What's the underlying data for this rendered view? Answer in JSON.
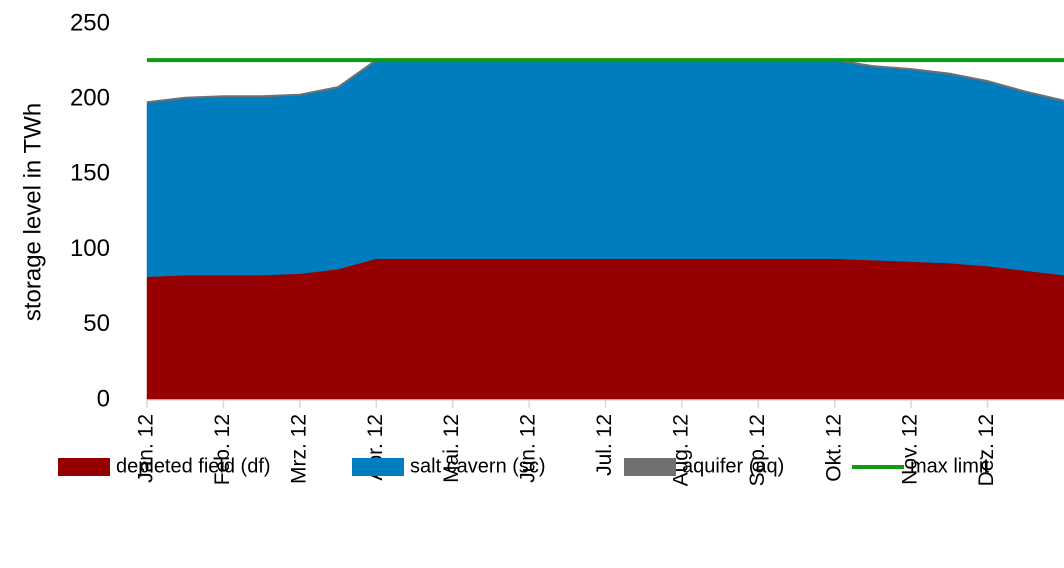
{
  "chart_data": {
    "type": "area",
    "stacked": true,
    "y_label": "storage level in TWh",
    "categories": [
      "Jan. 12",
      null,
      "Feb. 12",
      null,
      "Mrz. 12",
      null,
      "Apr. 12",
      null,
      "Mai. 12",
      null,
      "Jun. 12",
      null,
      "Jul. 12",
      null,
      "Aug. 12",
      null,
      "Sep. 12",
      null,
      "Okt. 12",
      null,
      "Nov. 12",
      null,
      "Dez. 12",
      null,
      null
    ],
    "series": [
      {
        "name": "depleted field (df)",
        "color": "#960000",
        "values": [
          82,
          83,
          83,
          83,
          84,
          87,
          94,
          94,
          94,
          94,
          94,
          94,
          94,
          94,
          94,
          94,
          94,
          94,
          94,
          93,
          92,
          91,
          89,
          86,
          83
        ]
      },
      {
        "name": "salt cavern (sc)",
        "color": "#007dbf",
        "values": [
          116,
          118,
          119,
          119,
          119,
          121,
          132,
          132,
          132,
          132,
          132,
          132,
          132,
          132,
          132,
          132,
          132,
          132,
          132,
          129,
          128,
          126,
          123,
          119,
          116
        ]
      },
      {
        "name": "aquifer (aq)",
        "color": "#707070",
        "values": [
          0,
          0,
          0,
          0,
          0,
          0,
          0,
          0,
          0,
          0,
          0,
          0,
          0,
          0,
          0,
          0,
          0,
          0,
          0,
          0,
          0,
          0,
          0,
          0,
          0
        ]
      },
      {
        "name": "max limit",
        "color": "#109a10",
        "type": "line",
        "values": [
          226,
          226,
          226,
          226,
          226,
          226,
          226,
          226,
          226,
          226,
          226,
          226,
          226,
          226,
          226,
          226,
          226,
          226,
          226,
          226,
          226,
          226,
          226,
          226,
          226
        ]
      }
    ],
    "ylim": [
      0,
      250
    ],
    "yticks": [
      0,
      50,
      100,
      150,
      200,
      250
    ],
    "grid": false,
    "legend": "bottom"
  }
}
